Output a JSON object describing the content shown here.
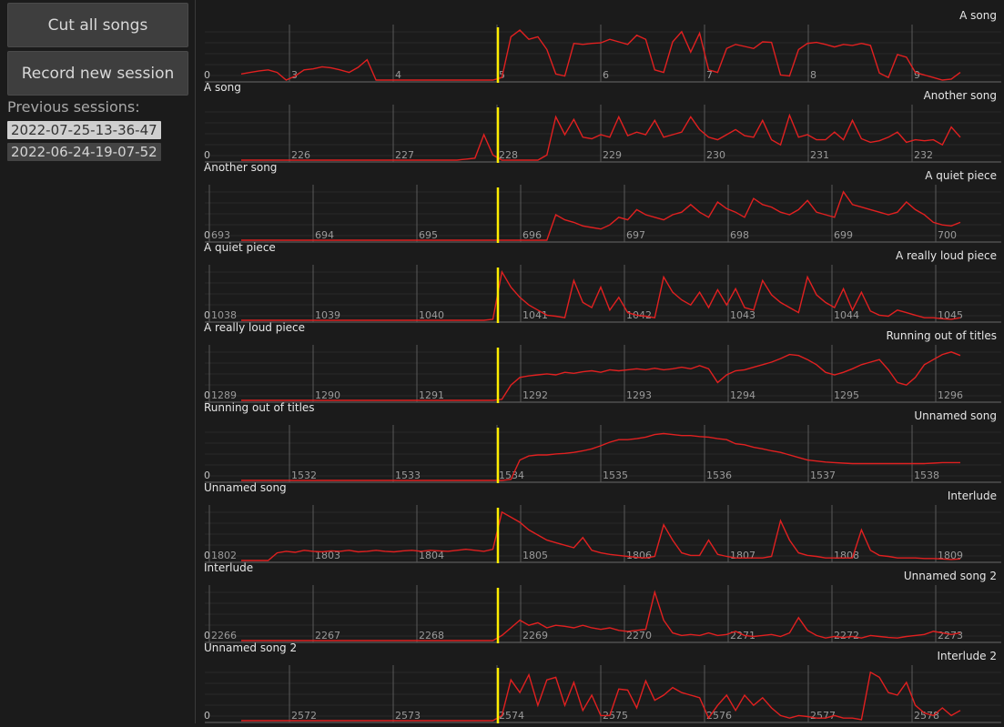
{
  "sidebar": {
    "cut_label": "Cut all songs",
    "record_label": "Record new session",
    "previous_label": "Previous sessions:",
    "sessions": [
      "2022-07-25-13-36-47",
      "2022-06-24-19-07-52"
    ],
    "selected_session": 0
  },
  "colors": {
    "waveform": "#e02020",
    "cut_marker": "#ffee00",
    "grid": "#3a3a3a",
    "tick_line": "#5a5a5a",
    "label": "#e6e6e6",
    "tick_label": "#9a9a9a"
  },
  "rows": [
    {
      "left_title": "",
      "right_title": "A song",
      "ticks": [
        "3",
        "4",
        "5",
        "6",
        "7",
        "8",
        "9"
      ],
      "zero_label": "0",
      "envelope": [
        0.12,
        0.15,
        0.18,
        0.2,
        0.15,
        0.0,
        0.08,
        0.2,
        0.22,
        0.26,
        0.24,
        0.2,
        0.15,
        0.25,
        0.4,
        0.0,
        0.0,
        0.0,
        0.0,
        0.0,
        0.0,
        0.0,
        0.0,
        0.0,
        0.0,
        0.0,
        0.0,
        0.0,
        0.0,
        0.05,
        0.85,
        0.98,
        0.8,
        0.85,
        0.6,
        0.12,
        0.08,
        0.72,
        0.7,
        0.72,
        0.73,
        0.8,
        0.75,
        0.7,
        0.88,
        0.8,
        0.2,
        0.15,
        0.75,
        0.95,
        0.55,
        0.92,
        0.2,
        0.15,
        0.62,
        0.7,
        0.66,
        0.62,
        0.75,
        0.74,
        0.1,
        0.08,
        0.6,
        0.72,
        0.74,
        0.7,
        0.65,
        0.7,
        0.68,
        0.72,
        0.68,
        0.14,
        0.05,
        0.5,
        0.45,
        0.15,
        0.1,
        0.05,
        0.0,
        0.02,
        0.15
      ]
    },
    {
      "left_title": "A song",
      "right_title": "Another song",
      "ticks": [
        "226",
        "227",
        "228",
        "229",
        "230",
        "231",
        "232"
      ],
      "zero_label": "0",
      "envelope": [
        0.0,
        0.0,
        0.0,
        0.0,
        0.0,
        0.0,
        0.0,
        0.0,
        0.0,
        0.0,
        0.0,
        0.0,
        0.0,
        0.0,
        0.0,
        0.0,
        0.0,
        0.0,
        0.0,
        0.0,
        0.0,
        0.0,
        0.0,
        0.0,
        0.0,
        0.02,
        0.04,
        0.5,
        0.1,
        0.0,
        0.0,
        0.0,
        0.0,
        0.0,
        0.1,
        0.85,
        0.5,
        0.8,
        0.45,
        0.42,
        0.5,
        0.45,
        0.85,
        0.48,
        0.55,
        0.5,
        0.78,
        0.45,
        0.5,
        0.55,
        0.85,
        0.6,
        0.45,
        0.4,
        0.5,
        0.6,
        0.48,
        0.45,
        0.78,
        0.4,
        0.3,
        0.88,
        0.45,
        0.5,
        0.4,
        0.4,
        0.55,
        0.4,
        0.78,
        0.42,
        0.35,
        0.38,
        0.45,
        0.55,
        0.35,
        0.4,
        0.38,
        0.4,
        0.3,
        0.65,
        0.45
      ]
    },
    {
      "left_title": "Another song",
      "right_title": "A quiet piece",
      "ticks": [
        "693",
        "694",
        "695",
        "696",
        "697",
        "698",
        "699",
        "700"
      ],
      "zero_label": "0",
      "envelope": [
        0.0,
        0.0,
        0.0,
        0.0,
        0.0,
        0.0,
        0.0,
        0.0,
        0.0,
        0.0,
        0.0,
        0.0,
        0.0,
        0.0,
        0.0,
        0.0,
        0.0,
        0.0,
        0.0,
        0.0,
        0.0,
        0.0,
        0.0,
        0.0,
        0.0,
        0.0,
        0.0,
        0.0,
        0.0,
        0.0,
        0.0,
        0.0,
        0.0,
        0.0,
        0.0,
        0.5,
        0.4,
        0.35,
        0.28,
        0.25,
        0.22,
        0.3,
        0.45,
        0.4,
        0.6,
        0.5,
        0.45,
        0.4,
        0.5,
        0.55,
        0.7,
        0.55,
        0.45,
        0.75,
        0.62,
        0.55,
        0.45,
        0.82,
        0.7,
        0.65,
        0.55,
        0.5,
        0.6,
        0.78,
        0.55,
        0.5,
        0.45,
        0.95,
        0.7,
        0.65,
        0.6,
        0.55,
        0.5,
        0.55,
        0.75,
        0.6,
        0.5,
        0.35,
        0.3,
        0.28,
        0.35
      ]
    },
    {
      "left_title": "A quiet piece",
      "right_title": "A really loud piece",
      "ticks": [
        "1038",
        "1039",
        "1040",
        "1041",
        "1042",
        "1043",
        "1044",
        "1045"
      ],
      "zero_label": "0",
      "envelope": [
        0.0,
        0.0,
        0.0,
        0.0,
        0.0,
        0.0,
        0.0,
        0.0,
        0.0,
        0.0,
        0.0,
        0.0,
        0.0,
        0.0,
        0.0,
        0.0,
        0.0,
        0.0,
        0.0,
        0.0,
        0.0,
        0.0,
        0.0,
        0.0,
        0.0,
        0.0,
        0.0,
        0.0,
        0.02,
        0.95,
        0.65,
        0.45,
        0.3,
        0.2,
        0.1,
        0.08,
        0.05,
        0.78,
        0.35,
        0.25,
        0.65,
        0.2,
        0.45,
        0.15,
        0.1,
        0.08,
        0.05,
        0.85,
        0.55,
        0.4,
        0.3,
        0.55,
        0.25,
        0.6,
        0.3,
        0.62,
        0.25,
        0.2,
        0.78,
        0.5,
        0.35,
        0.25,
        0.15,
        0.85,
        0.5,
        0.35,
        0.25,
        0.62,
        0.2,
        0.55,
        0.18,
        0.1,
        0.08,
        0.2,
        0.15,
        0.1,
        0.05,
        0.05,
        0.03,
        0.02,
        0.05
      ]
    },
    {
      "left_title": "A really loud piece",
      "right_title": "Running out of titles",
      "ticks": [
        "1289",
        "1290",
        "1291",
        "1292",
        "1293",
        "1294",
        "1295",
        "1296"
      ],
      "zero_label": "0",
      "envelope": [
        0.0,
        0.0,
        0.0,
        0.0,
        0.0,
        0.0,
        0.0,
        0.0,
        0.0,
        0.0,
        0.0,
        0.0,
        0.0,
        0.0,
        0.0,
        0.0,
        0.0,
        0.0,
        0.0,
        0.0,
        0.0,
        0.0,
        0.0,
        0.0,
        0.0,
        0.0,
        0.0,
        0.0,
        0.0,
        0.02,
        0.3,
        0.45,
        0.48,
        0.5,
        0.52,
        0.5,
        0.55,
        0.53,
        0.56,
        0.58,
        0.55,
        0.6,
        0.58,
        0.6,
        0.62,
        0.6,
        0.63,
        0.6,
        0.62,
        0.65,
        0.62,
        0.68,
        0.62,
        0.35,
        0.5,
        0.58,
        0.6,
        0.65,
        0.7,
        0.75,
        0.82,
        0.9,
        0.88,
        0.8,
        0.7,
        0.55,
        0.5,
        0.55,
        0.62,
        0.7,
        0.75,
        0.8,
        0.6,
        0.35,
        0.3,
        0.45,
        0.7,
        0.8,
        0.9,
        0.95,
        0.88
      ]
    },
    {
      "left_title": "Running out of titles",
      "right_title": "Unnamed song",
      "ticks": [
        "1532",
        "1533",
        "1534",
        "1535",
        "1536",
        "1537",
        "1538"
      ],
      "zero_label": "0",
      "envelope": [
        0.0,
        0.0,
        0.0,
        0.0,
        0.0,
        0.0,
        0.0,
        0.0,
        0.0,
        0.0,
        0.0,
        0.0,
        0.0,
        0.0,
        0.0,
        0.0,
        0.0,
        0.0,
        0.0,
        0.0,
        0.0,
        0.0,
        0.0,
        0.0,
        0.0,
        0.0,
        0.0,
        0.0,
        0.0,
        0.0,
        0.02,
        0.4,
        0.48,
        0.5,
        0.5,
        0.52,
        0.53,
        0.55,
        0.58,
        0.62,
        0.68,
        0.75,
        0.8,
        0.8,
        0.82,
        0.85,
        0.9,
        0.92,
        0.9,
        0.88,
        0.88,
        0.86,
        0.85,
        0.82,
        0.8,
        0.72,
        0.7,
        0.65,
        0.62,
        0.58,
        0.55,
        0.5,
        0.45,
        0.4,
        0.38,
        0.36,
        0.35,
        0.34,
        0.33,
        0.33,
        0.33,
        0.33,
        0.33,
        0.33,
        0.33,
        0.33,
        0.33,
        0.34,
        0.35,
        0.35,
        0.35
      ]
    },
    {
      "left_title": "Unnamed song",
      "right_title": "Interlude",
      "ticks": [
        "1802",
        "1803",
        "1804",
        "1805",
        "1806",
        "1807",
        "1808",
        "1809"
      ],
      "zero_label": "0",
      "envelope": [
        0.0,
        0.0,
        0.0,
        0.0,
        0.15,
        0.18,
        0.16,
        0.2,
        0.18,
        0.17,
        0.19,
        0.18,
        0.2,
        0.17,
        0.18,
        0.2,
        0.18,
        0.17,
        0.19,
        0.2,
        0.18,
        0.2,
        0.19,
        0.18,
        0.2,
        0.22,
        0.2,
        0.18,
        0.22,
        0.95,
        0.85,
        0.75,
        0.6,
        0.5,
        0.4,
        0.35,
        0.3,
        0.25,
        0.45,
        0.2,
        0.15,
        0.12,
        0.1,
        0.08,
        0.06,
        0.05,
        0.08,
        0.7,
        0.4,
        0.15,
        0.1,
        0.1,
        0.4,
        0.12,
        0.08,
        0.05,
        0.05,
        0.05,
        0.05,
        0.08,
        0.78,
        0.4,
        0.15,
        0.1,
        0.08,
        0.05,
        0.05,
        0.05,
        0.05,
        0.6,
        0.2,
        0.1,
        0.08,
        0.05,
        0.05,
        0.05,
        0.04,
        0.04,
        0.03,
        0.02,
        0.03
      ]
    },
    {
      "left_title": "Interlude",
      "right_title": "Unnamed song 2",
      "ticks": [
        "2266",
        "2267",
        "2268",
        "2269",
        "2270",
        "2271",
        "2272",
        "2273"
      ],
      "zero_label": "0",
      "envelope": [
        0.0,
        0.0,
        0.0,
        0.0,
        0.0,
        0.0,
        0.0,
        0.0,
        0.0,
        0.0,
        0.0,
        0.0,
        0.0,
        0.0,
        0.0,
        0.0,
        0.0,
        0.0,
        0.0,
        0.0,
        0.0,
        0.0,
        0.0,
        0.0,
        0.0,
        0.0,
        0.0,
        0.0,
        0.0,
        0.1,
        0.25,
        0.4,
        0.3,
        0.35,
        0.25,
        0.3,
        0.28,
        0.25,
        0.3,
        0.25,
        0.22,
        0.25,
        0.2,
        0.18,
        0.2,
        0.22,
        0.95,
        0.4,
        0.15,
        0.1,
        0.12,
        0.1,
        0.15,
        0.1,
        0.12,
        0.18,
        0.1,
        0.08,
        0.1,
        0.12,
        0.08,
        0.15,
        0.45,
        0.2,
        0.1,
        0.05,
        0.08,
        0.06,
        0.08,
        0.05,
        0.1,
        0.08,
        0.06,
        0.05,
        0.08,
        0.1,
        0.12,
        0.18,
        0.15,
        0.12,
        0.15
      ]
    },
    {
      "left_title": "Unnamed song 2",
      "right_title": "Interlude 2",
      "ticks": [
        "2572",
        "2573",
        "2574",
        "2575",
        "2576",
        "2577",
        "2578"
      ],
      "zero_label": "0",
      "envelope": [
        0.0,
        0.0,
        0.0,
        0.0,
        0.0,
        0.0,
        0.0,
        0.0,
        0.0,
        0.0,
        0.0,
        0.0,
        0.0,
        0.0,
        0.0,
        0.0,
        0.0,
        0.0,
        0.0,
        0.0,
        0.0,
        0.0,
        0.0,
        0.0,
        0.0,
        0.0,
        0.0,
        0.0,
        0.0,
        0.1,
        0.8,
        0.55,
        0.9,
        0.3,
        0.8,
        0.85,
        0.3,
        0.75,
        0.2,
        0.5,
        0.1,
        0.1,
        0.62,
        0.6,
        0.25,
        0.78,
        0.4,
        0.5,
        0.65,
        0.55,
        0.5,
        0.45,
        0.05,
        0.3,
        0.5,
        0.2,
        0.5,
        0.3,
        0.45,
        0.25,
        0.1,
        0.05,
        0.1,
        0.08,
        0.05,
        0.05,
        0.1,
        0.05,
        0.05,
        0.02,
        0.95,
        0.85,
        0.55,
        0.5,
        0.75,
        0.3,
        0.15,
        0.1,
        0.25,
        0.1,
        0.2
      ]
    }
  ]
}
